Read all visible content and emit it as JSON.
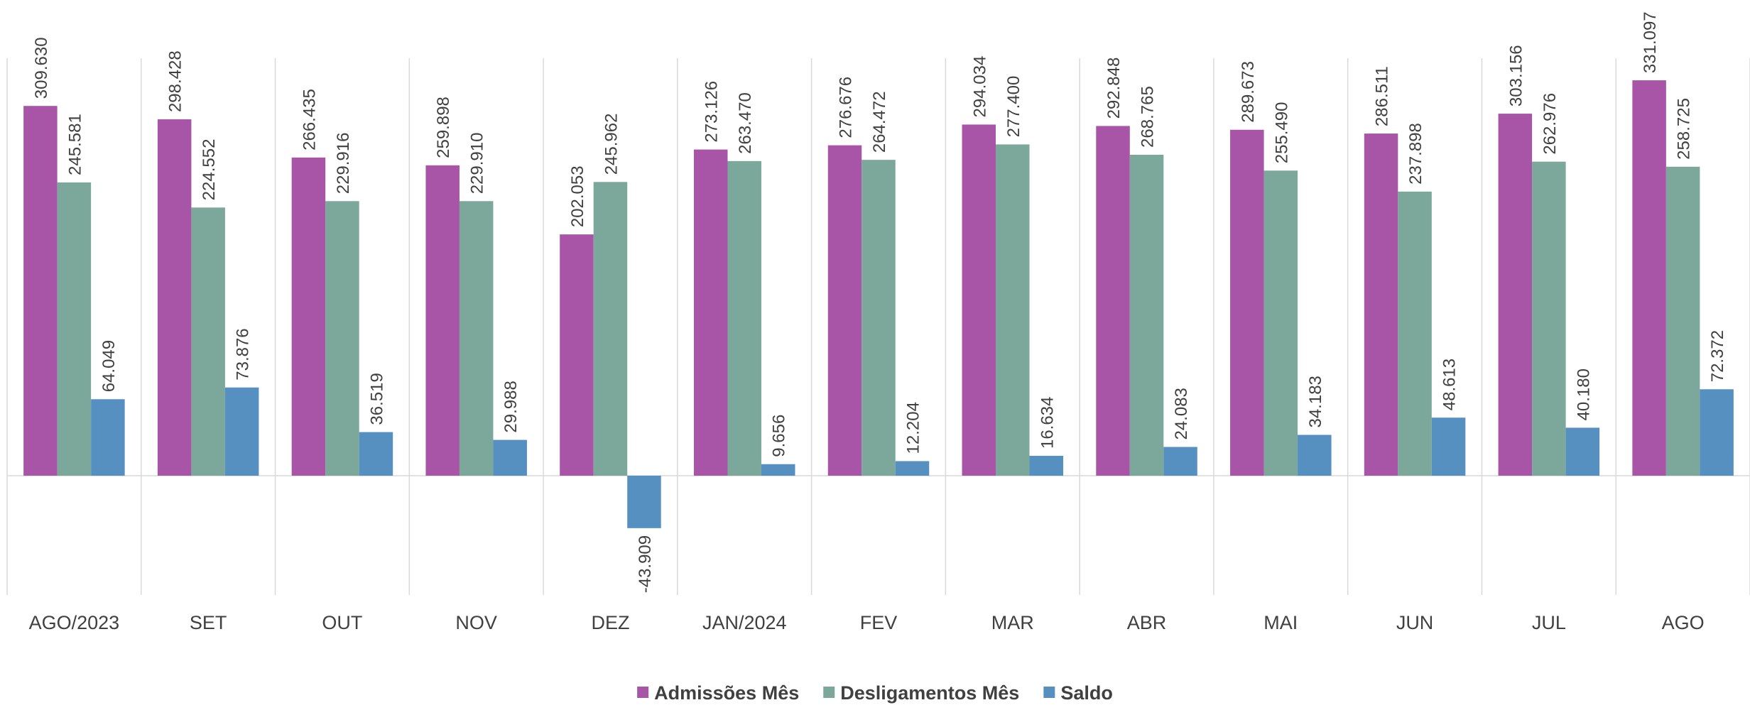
{
  "chart_data": {
    "type": "bar",
    "categories": [
      "AGO/2023",
      "SET",
      "OUT",
      "NOV",
      "DEZ",
      "JAN/2024",
      "FEV",
      "MAR",
      "ABR",
      "MAI",
      "JUN",
      "JUL",
      "AGO"
    ],
    "series": [
      {
        "name": "Admissões Mês",
        "color": "#a855a8",
        "values": [
          309630,
          298428,
          266435,
          259898,
          202053,
          273126,
          276676,
          294034,
          292848,
          289673,
          286511,
          303156,
          331097
        ],
        "labels": [
          "309.630",
          "298.428",
          "266.435",
          "259.898",
          "202.053",
          "273.126",
          "276.676",
          "294.034",
          "292.848",
          "289.673",
          "286.511",
          "303.156",
          "331.097"
        ]
      },
      {
        "name": "Desligamentos Mês",
        "color": "#7ba89b",
        "values": [
          245581,
          224552,
          229916,
          229910,
          245962,
          263470,
          264472,
          277400,
          268765,
          255490,
          237898,
          262976,
          258725
        ],
        "labels": [
          "245.581",
          "224.552",
          "229.916",
          "229.910",
          "245.962",
          "263.470",
          "264.472",
          "277.400",
          "268.765",
          "255.490",
          "237.898",
          "262.976",
          "258.725"
        ]
      },
      {
        "name": "Saldo",
        "color": "#5590c0",
        "values": [
          64049,
          73876,
          36519,
          29988,
          -43909,
          9656,
          12204,
          16634,
          24083,
          34183,
          48613,
          40180,
          72372
        ],
        "labels": [
          "64.049",
          "73.876",
          "36.519",
          "29.988",
          "-43.909",
          "9.656",
          "12.204",
          "16.634",
          "24.083",
          "34.183",
          "48.613",
          "40.180",
          "72.372"
        ]
      }
    ],
    "xlabel": "",
    "ylabel": "",
    "ylim": [
      -100000,
      331097
    ],
    "grid": "vertical separators between categories",
    "legend_position": "bottom-center",
    "gridline_color": "#d9d9d9"
  }
}
